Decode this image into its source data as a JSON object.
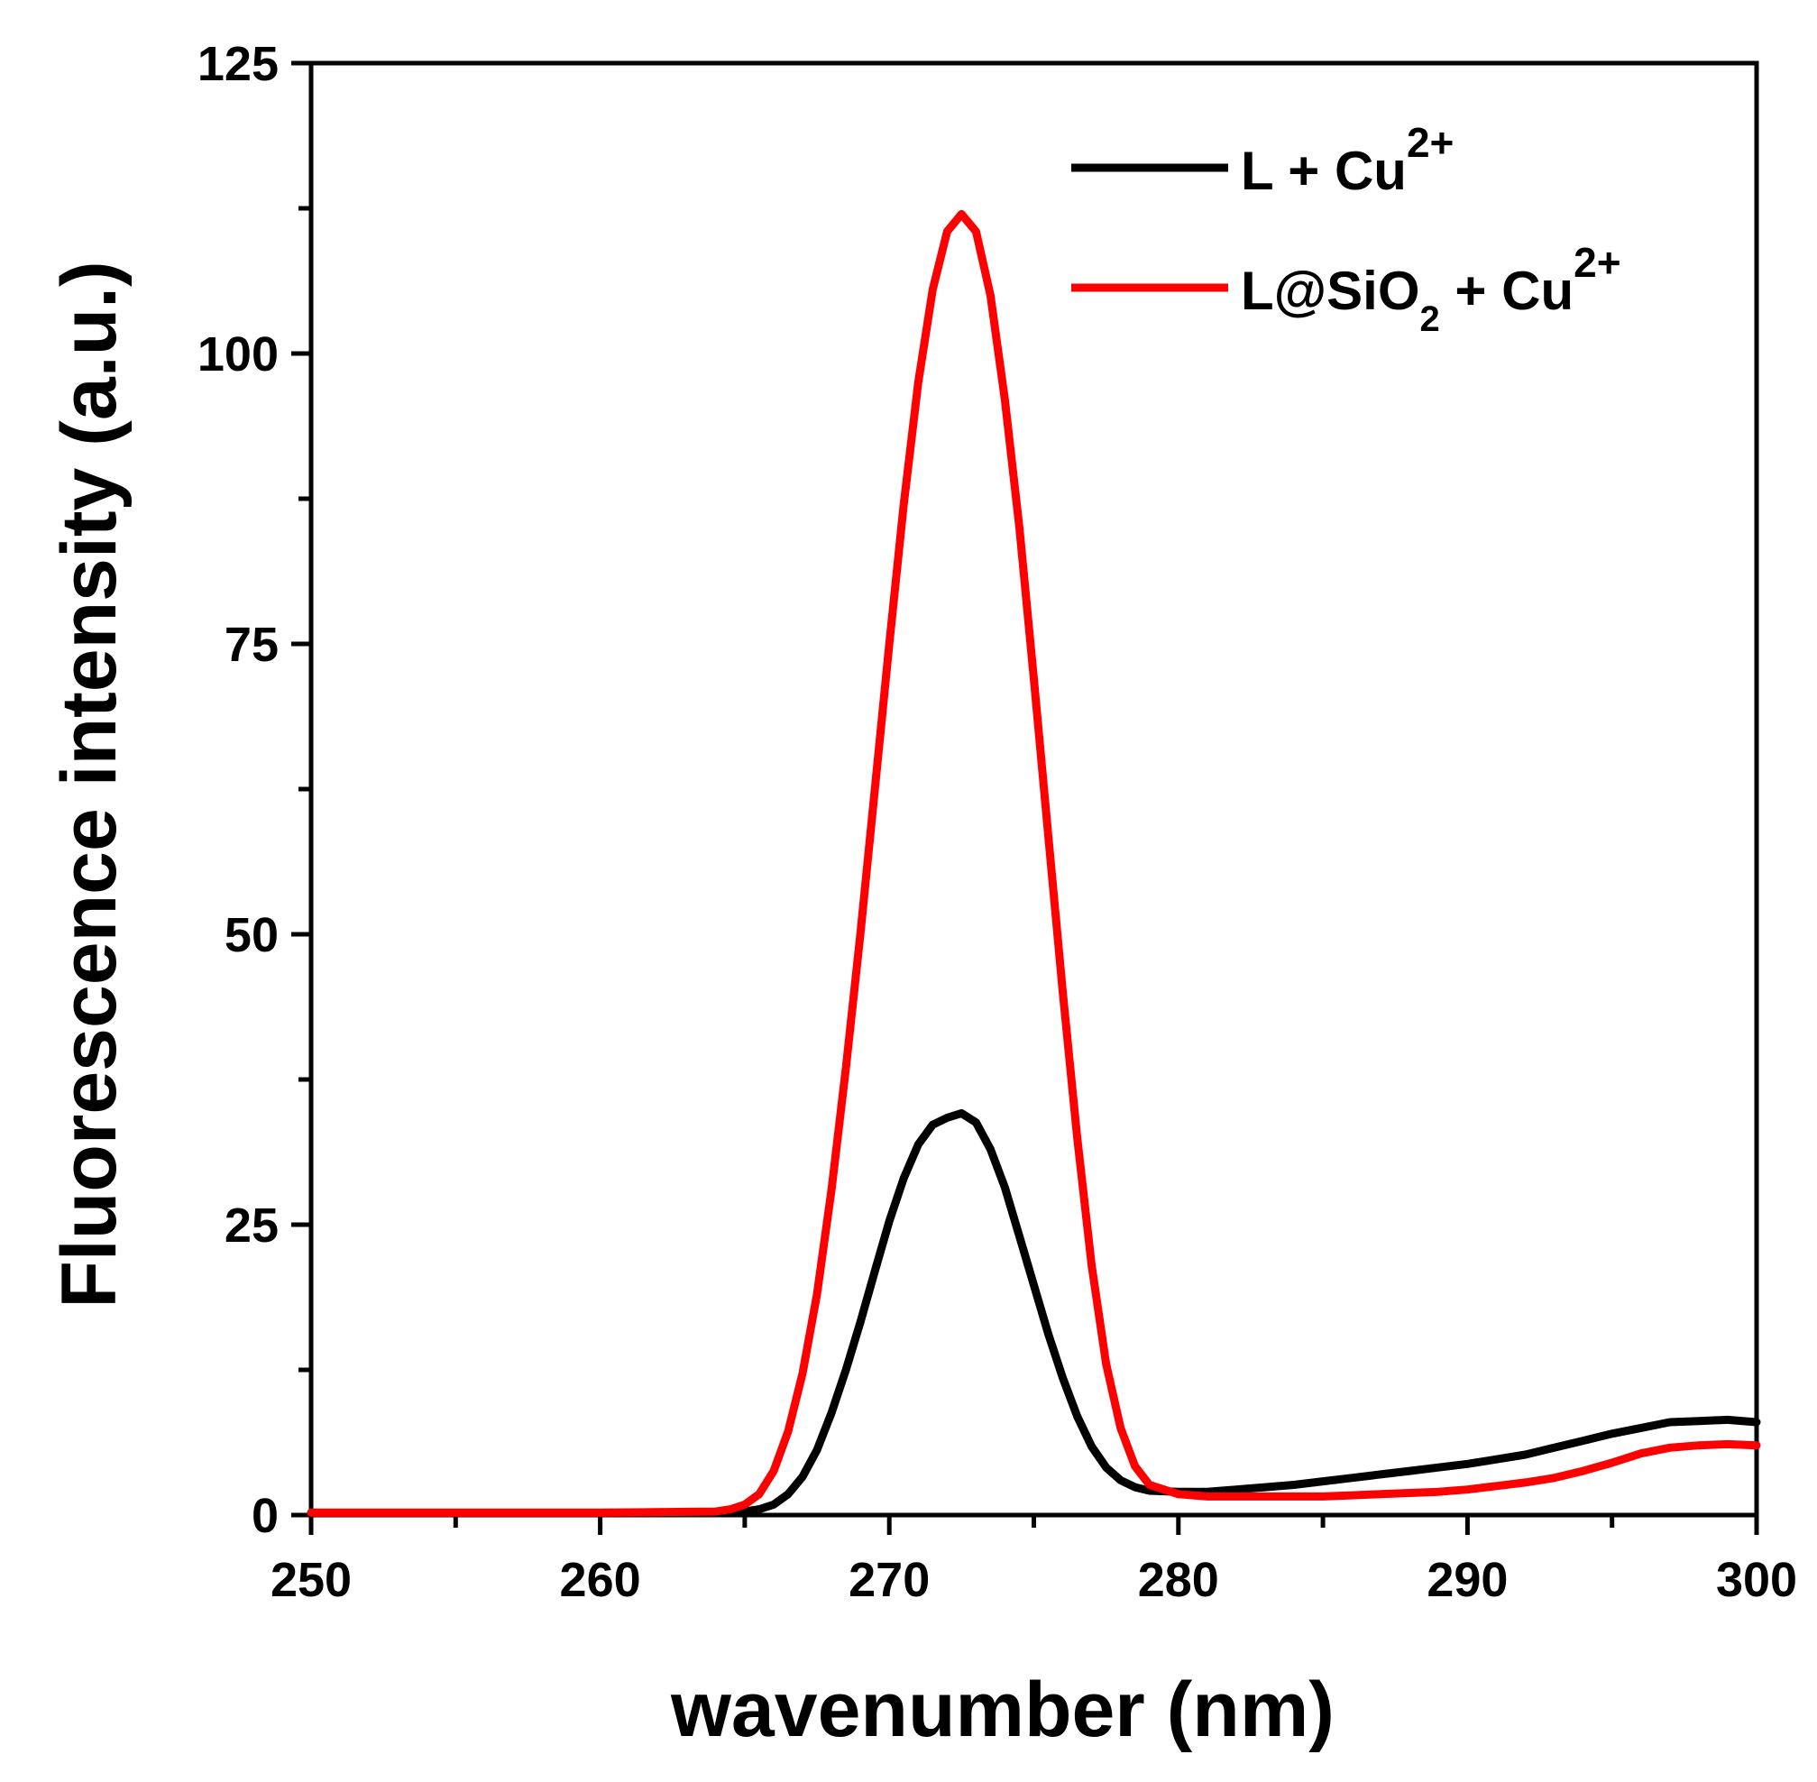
{
  "chart_data": {
    "type": "line",
    "title": "",
    "xlabel": "wavenumber (nm)",
    "ylabel": "Fluorescence intensity (a.u.)",
    "xlim": [
      250,
      300
    ],
    "ylim": [
      0,
      125
    ],
    "x_ticks": [
      250,
      260,
      270,
      280,
      290,
      300
    ],
    "x_tick_labels": [
      "250",
      "260",
      "270",
      "280",
      "290",
      "300"
    ],
    "x_minor_ticks": [
      255,
      265,
      275,
      285,
      295
    ],
    "y_ticks": [
      0,
      25,
      50,
      75,
      100,
      125
    ],
    "y_tick_labels": [
      "0",
      "25",
      "50",
      "75",
      "100",
      "125"
    ],
    "y_minor_ticks": [
      12.5,
      37.5,
      62.5,
      87.5,
      112.5
    ],
    "grid": false,
    "legend_position": "top-right",
    "legend": {
      "l_cu": {
        "base": "L + Cu",
        "sup": "2+"
      },
      "lsio2_cu": {
        "base": "L@SiO",
        "sub": "2",
        "mid": " + Cu",
        "sup": "2+"
      }
    },
    "series": [
      {
        "name": "L + Cu2+",
        "color": "#000000",
        "x": [
          250,
          255,
          260,
          264,
          265,
          265.5,
          266,
          266.5,
          267,
          267.5,
          268,
          268.5,
          269,
          269.5,
          270,
          270.5,
          271,
          271.5,
          272,
          272.5,
          273,
          273.5,
          274,
          274.5,
          275,
          275.5,
          276,
          276.5,
          277,
          277.5,
          278,
          278.5,
          279,
          280,
          281,
          282,
          283,
          284,
          285,
          286,
          287,
          288,
          289,
          290,
          291,
          292,
          293,
          294,
          295,
          296,
          297,
          298,
          299,
          300
        ],
        "y": [
          0.2,
          0.2,
          0.2,
          0.2,
          0.3,
          0.5,
          0.9,
          1.8,
          3.3,
          5.6,
          8.8,
          12.5,
          16.6,
          21.0,
          25.3,
          29.0,
          31.9,
          33.6,
          34.2,
          34.6,
          33.8,
          31.5,
          28.2,
          24.0,
          19.8,
          15.6,
          11.8,
          8.5,
          5.9,
          4.1,
          3.0,
          2.4,
          2.1,
          2.0,
          2.0,
          2.2,
          2.4,
          2.6,
          2.9,
          3.2,
          3.5,
          3.8,
          4.1,
          4.4,
          4.8,
          5.2,
          5.8,
          6.4,
          7.0,
          7.5,
          8.0,
          8.1,
          8.2,
          8.0
        ]
      },
      {
        "name": "L@SiO2 + Cu2+",
        "color": "#ff0000",
        "x": [
          250,
          255,
          260,
          264,
          264.5,
          265,
          265.5,
          266,
          266.5,
          267,
          267.5,
          268,
          268.5,
          269,
          269.5,
          270,
          270.5,
          271,
          271.5,
          272,
          272.5,
          273,
          273.5,
          274,
          274.5,
          275,
          275.5,
          276,
          276.5,
          277,
          277.5,
          278,
          278.5,
          279,
          280,
          281,
          282,
          283,
          284,
          285,
          286,
          287,
          288,
          289,
          290,
          291,
          292,
          293,
          294,
          295,
          296,
          297,
          298,
          299,
          300
        ],
        "y": [
          0.2,
          0.2,
          0.2,
          0.3,
          0.5,
          0.9,
          1.8,
          3.8,
          7.2,
          12.2,
          19.0,
          28.0,
          38.5,
          50.0,
          62.5,
          75.0,
          87.0,
          97.5,
          105.5,
          110.5,
          112.0,
          110.5,
          105.0,
          96.0,
          85.0,
          72.0,
          58.5,
          45.0,
          32.5,
          21.5,
          13.0,
          7.5,
          4.2,
          2.6,
          1.8,
          1.6,
          1.6,
          1.6,
          1.6,
          1.6,
          1.7,
          1.8,
          1.9,
          2.0,
          2.2,
          2.5,
          2.8,
          3.2,
          3.8,
          4.5,
          5.3,
          5.8,
          6.0,
          6.1,
          6.0
        ]
      }
    ]
  }
}
